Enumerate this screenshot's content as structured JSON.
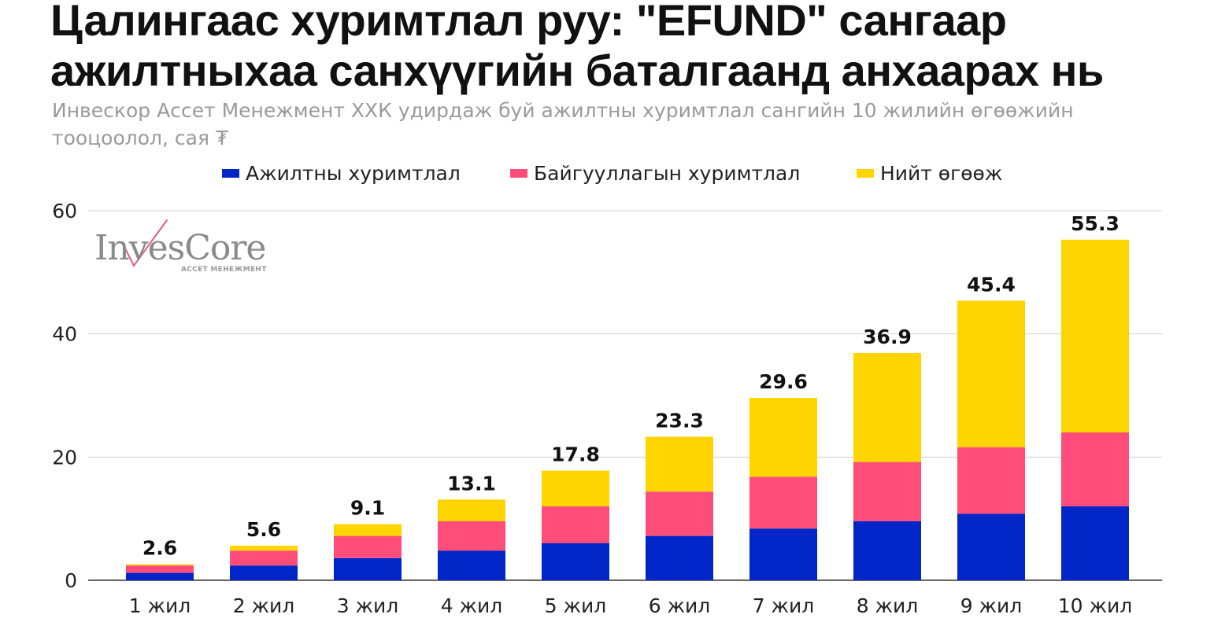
{
  "title": "Цалингаас хуримтлал руу: \"EFUND\" сангаар ажилтныхаа санхүүгийн баталгаанд анхаарах нь",
  "subtitle": "Инвескор Ассет Менежмент ХХК удирдаж буй ажилтны хуримтлал сангийн 10 жилийн өгөөжийн тооцоолол, сая ₮",
  "logo": {
    "text": "InvesCore",
    "subtext": "АССЕТ МЕНЕЖМЕНТ",
    "accent_color": "#e0607a"
  },
  "chart_data": {
    "type": "bar",
    "stacked": true,
    "categories": [
      "1 жил",
      "2 жил",
      "3 жил",
      "4 жил",
      "5 жил",
      "6 жил",
      "7 жил",
      "8 жил",
      "9 жил",
      "10 жил"
    ],
    "series": [
      {
        "name": "Ажилтны хуримтлал",
        "color": "#0026c8",
        "values": [
          1.2,
          2.4,
          3.6,
          4.8,
          6.0,
          7.2,
          8.4,
          9.6,
          10.8,
          12.0
        ]
      },
      {
        "name": "Байгууллагын хуримтлал",
        "color": "#ff4d7a",
        "values": [
          1.2,
          2.4,
          3.6,
          4.8,
          6.0,
          7.2,
          8.4,
          9.6,
          10.8,
          12.0
        ]
      },
      {
        "name": "Нийт өгөөж",
        "color": "#ffd500",
        "values": [
          0.2,
          0.8,
          1.9,
          3.5,
          5.8,
          8.9,
          12.8,
          17.7,
          23.8,
          31.3
        ]
      }
    ],
    "totals": [
      "2.6",
      "5.6",
      "9.1",
      "13.1",
      "17.8",
      "23.3",
      "29.6",
      "36.9",
      "45.4",
      "55.3"
    ],
    "ylim": [
      0,
      60
    ],
    "yticks": [
      0,
      20,
      40,
      60
    ],
    "grid": true,
    "legend_position": "top"
  }
}
